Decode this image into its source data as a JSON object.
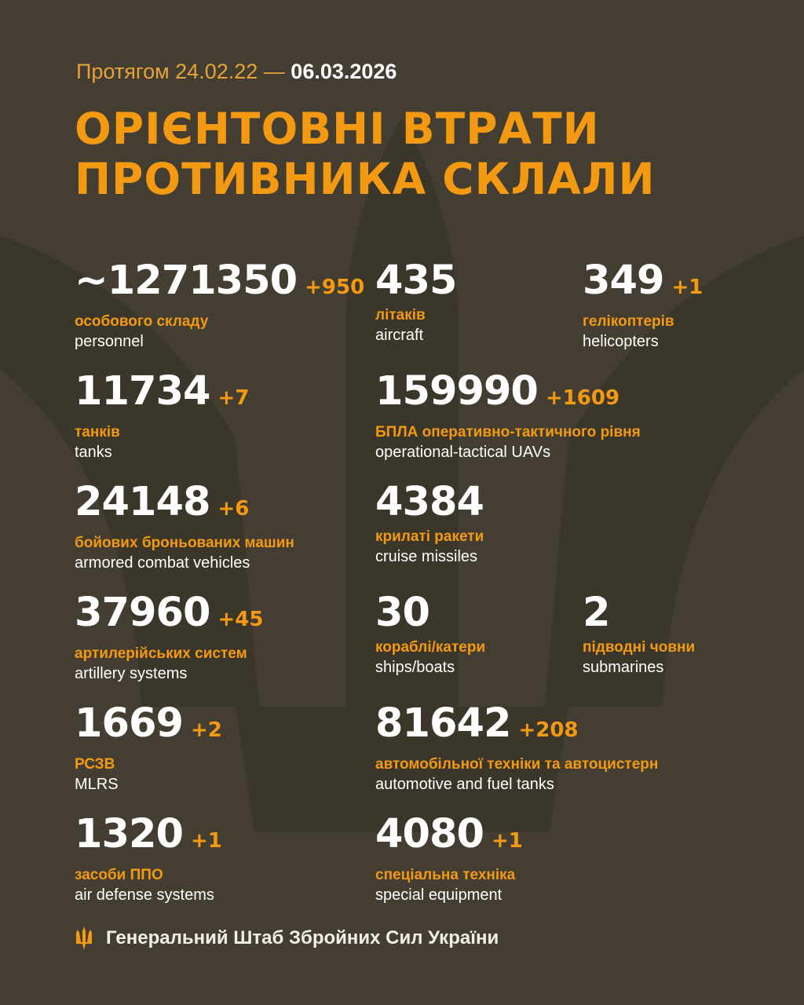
{
  "header": {
    "period_prefix": "Протягом 24.02.22 —",
    "period_end": "06.03.2026",
    "title_line1": "ОРІЄНТОВНІ ВТРАТИ",
    "title_line2": "ПРОТИВНИКА СКЛАЛИ"
  },
  "stats": [
    {
      "value": "~1271350",
      "delta": "+950",
      "ua": "особового складу",
      "en": "personnel"
    },
    {
      "value": "435",
      "delta": "",
      "ua": "літаків",
      "en": "aircraft"
    },
    {
      "value": "349",
      "delta": "+1",
      "ua": "гелікоптерів",
      "en": "helicopters"
    },
    {
      "value": "11734",
      "delta": "+7",
      "ua": "танків",
      "en": "tanks"
    },
    {
      "value": "159990",
      "delta": "+1609",
      "ua": "БПЛА оперативно-тактичного рівня",
      "en": "operational-tactical UAVs"
    },
    {
      "value": "24148",
      "delta": "+6",
      "ua": "бойових броньованих машин",
      "en": "armored combat vehicles"
    },
    {
      "value": "4384",
      "delta": "",
      "ua": "крилаті ракети",
      "en": "cruise missiles"
    },
    {
      "value": "37960",
      "delta": "+45",
      "ua": "артилерійських систем",
      "en": "artillery systems"
    },
    {
      "value": "30",
      "delta": "",
      "ua": "кораблі/катери",
      "en": "ships/boats"
    },
    {
      "value": "2",
      "delta": "",
      "ua": "підводні човни",
      "en": "submarines"
    },
    {
      "value": "1669",
      "delta": "+2",
      "ua": "РСЗВ",
      "en": "MLRS"
    },
    {
      "value": "81642",
      "delta": "+208",
      "ua": "автомобільної техніки та автоцистерн",
      "en": "automotive and fuel tanks"
    },
    {
      "value": "1320",
      "delta": "+1",
      "ua": "засоби ППО",
      "en": "air defense systems"
    },
    {
      "value": "4080",
      "delta": "+1",
      "ua": "спеціальна техніка",
      "en": "special equipment"
    }
  ],
  "footer": {
    "text": "Генеральний Штаб Збройних Сил України",
    "icon": "trident-icon"
  },
  "colors": {
    "background": "#433e31",
    "accent": "#f39a12",
    "text": "#ffffff"
  }
}
